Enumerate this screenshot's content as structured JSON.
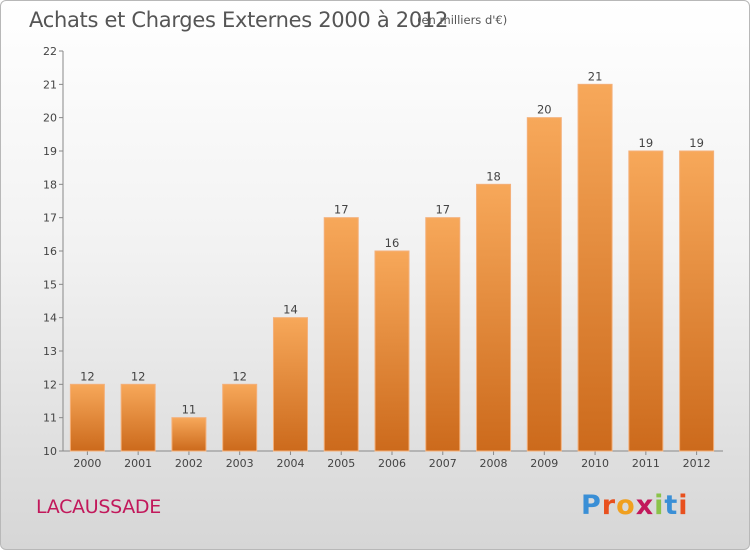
{
  "chart_data": {
    "type": "bar",
    "title": "Achats et Charges Externes 2000 à 2012",
    "subtitle": "(en milliers d'€)",
    "categories": [
      "2000",
      "2001",
      "2002",
      "2003",
      "2004",
      "2005",
      "2006",
      "2007",
      "2008",
      "2009",
      "2010",
      "2011",
      "2012"
    ],
    "values": [
      12,
      12,
      11,
      12,
      14,
      17,
      16,
      17,
      18,
      20,
      21,
      19,
      19
    ],
    "ylim": [
      10,
      22
    ],
    "yticks": [
      10,
      11,
      12,
      13,
      14,
      15,
      16,
      17,
      18,
      19,
      20,
      21,
      22
    ],
    "grid": false,
    "bar_color": "#f0923a"
  },
  "location": "LACAUSSADE",
  "brand": {
    "letters": [
      "P",
      "r",
      "o",
      "x",
      "i",
      "t",
      "i"
    ],
    "colors": [
      "#3a8fd6",
      "#e8501e",
      "#f0a020",
      "#c2185b",
      "#8bc34a",
      "#3a8fd6",
      "#e8501e"
    ]
  }
}
